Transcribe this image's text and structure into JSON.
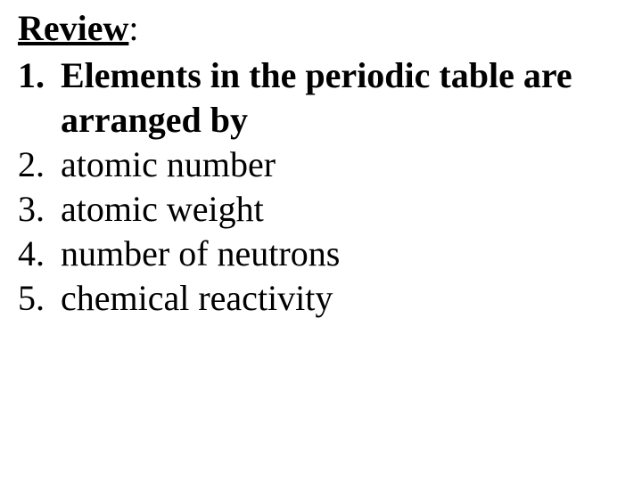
{
  "heading": {
    "text": "Review",
    "punctuation": ":",
    "font_size_pt": 40,
    "font_weight": "bold",
    "text_decoration": "underline",
    "font_family": "Times New Roman",
    "color": "#000000"
  },
  "list": {
    "font_size_pt": 40,
    "font_family": "Times New Roman",
    "color": "#000000",
    "items": [
      {
        "number": "1.",
        "text": "Elements in the periodic table are arranged by",
        "bold": true
      },
      {
        "number": "2.",
        "text": "atomic number",
        "bold": false
      },
      {
        "number": "3.",
        "text": "atomic weight",
        "bold": false
      },
      {
        "number": "4.",
        "text": "number of neutrons",
        "bold": false
      },
      {
        "number": "5.",
        "text": "chemical reactivity",
        "bold": false
      }
    ]
  },
  "background_color": "#ffffff"
}
